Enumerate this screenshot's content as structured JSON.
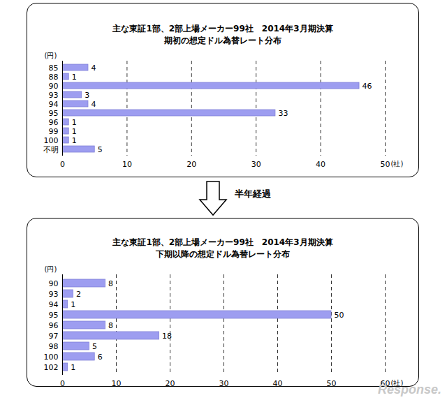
{
  "chart_data": [
    {
      "type": "bar",
      "orientation": "horizontal",
      "title": "主な東証1部、2部上場メーカー99社　2014年3月期決算",
      "subtitle": "期初の想定ドル為替レート分布",
      "y_label": "(円)",
      "x_label": "(社)",
      "categories": [
        "85",
        "88",
        "90",
        "93",
        "94",
        "95",
        "96",
        "99",
        "100",
        "不明"
      ],
      "values": [
        4,
        1,
        46,
        3,
        4,
        33,
        1,
        1,
        1,
        5
      ],
      "color": "#9d9df0",
      "xlim": [
        0,
        50
      ],
      "xticks": [
        0,
        10,
        20,
        30,
        40,
        50
      ],
      "grid": true,
      "data_labels": true
    },
    {
      "type": "bar",
      "orientation": "horizontal",
      "title": "主な東証1部、2部上場メーカー99社　2014年3月期決算",
      "subtitle": "下期以降の想定ドル為替レート分布",
      "y_label": "(円)",
      "x_label": "(社)",
      "categories": [
        "90",
        "93",
        "94",
        "95",
        "96",
        "97",
        "98",
        "100",
        "102"
      ],
      "values": [
        8,
        2,
        1,
        50,
        8,
        18,
        5,
        6,
        1
      ],
      "color": "#9d9df0",
      "xlim": [
        0,
        60
      ],
      "xticks": [
        0,
        10,
        20,
        30,
        40,
        50,
        60
      ],
      "grid": true,
      "data_labels": true
    }
  ],
  "arrow_label": "半年経過",
  "watermark": "Response."
}
